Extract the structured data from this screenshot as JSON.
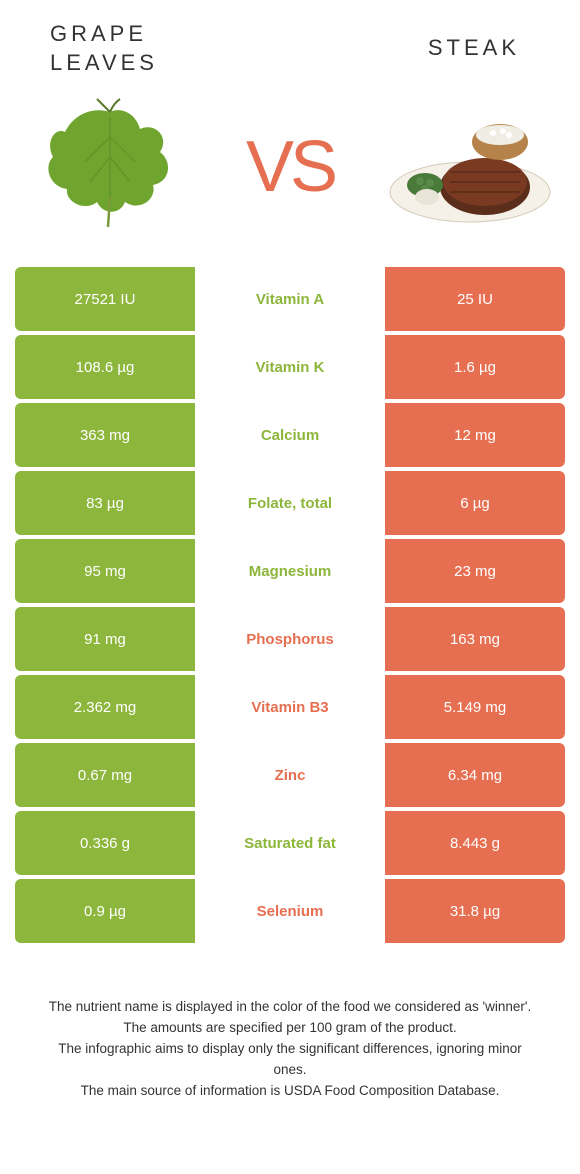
{
  "foods": {
    "left": {
      "name": "GRAPE\nLEAVES"
    },
    "right": {
      "name": "STEAK"
    }
  },
  "vs_label": "VS",
  "colors": {
    "green": "#8db63c",
    "orange": "#e76f51",
    "mid_bg": "#ffffff"
  },
  "rows": [
    {
      "left": "27521 IU",
      "nutrient": "Vitamin A",
      "right": "25 IU",
      "winner": "left"
    },
    {
      "left": "108.6 µg",
      "nutrient": "Vitamin K",
      "right": "1.6 µg",
      "winner": "left"
    },
    {
      "left": "363 mg",
      "nutrient": "Calcium",
      "right": "12 mg",
      "winner": "left"
    },
    {
      "left": "83 µg",
      "nutrient": "Folate, total",
      "right": "6 µg",
      "winner": "left"
    },
    {
      "left": "95 mg",
      "nutrient": "Magnesium",
      "right": "23 mg",
      "winner": "left"
    },
    {
      "left": "91 mg",
      "nutrient": "Phosphorus",
      "right": "163 mg",
      "winner": "right"
    },
    {
      "left": "2.362 mg",
      "nutrient": "Vitamin B3",
      "right": "5.149 mg",
      "winner": "right"
    },
    {
      "left": "0.67 mg",
      "nutrient": "Zinc",
      "right": "6.34 mg",
      "winner": "right"
    },
    {
      "left": "0.336 g",
      "nutrient": "Saturated fat",
      "right": "8.443 g",
      "winner": "left"
    },
    {
      "left": "0.9 µg",
      "nutrient": "Selenium",
      "right": "31.8 µg",
      "winner": "right"
    }
  ],
  "footer_lines": [
    "The nutrient name is displayed in the color of the food we considered as 'winner'.",
    "The amounts are specified per 100 gram of the product.",
    "The infographic aims to display only the significant differences, ignoring minor ones.",
    "The main source of information is USDA Food Composition Database."
  ]
}
